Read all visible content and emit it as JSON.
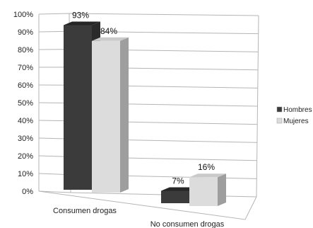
{
  "chart_data": {
    "type": "bar",
    "style": "3d-clustered-column",
    "categories": [
      "Consumen drogas",
      "No consumen drogas"
    ],
    "series": [
      {
        "name": "Hombres",
        "values": [
          93,
          7
        ],
        "labels": [
          "93%",
          "7%"
        ],
        "color": "#3b3b3b"
      },
      {
        "name": "Mujeres",
        "values": [
          84,
          16
        ],
        "labels": [
          "84%",
          "16%"
        ],
        "color": "#dcdcdc"
      }
    ],
    "ylim": [
      0,
      100
    ],
    "yticks": [
      0,
      10,
      20,
      30,
      40,
      50,
      60,
      70,
      80,
      90,
      100
    ],
    "ytick_labels": [
      "0%",
      "10%",
      "20%",
      "30%",
      "40%",
      "50%",
      "60%",
      "70%",
      "80%",
      "90%",
      "100%"
    ],
    "grid": true,
    "legend": "right",
    "title": "",
    "xlabel": "",
    "ylabel": ""
  }
}
